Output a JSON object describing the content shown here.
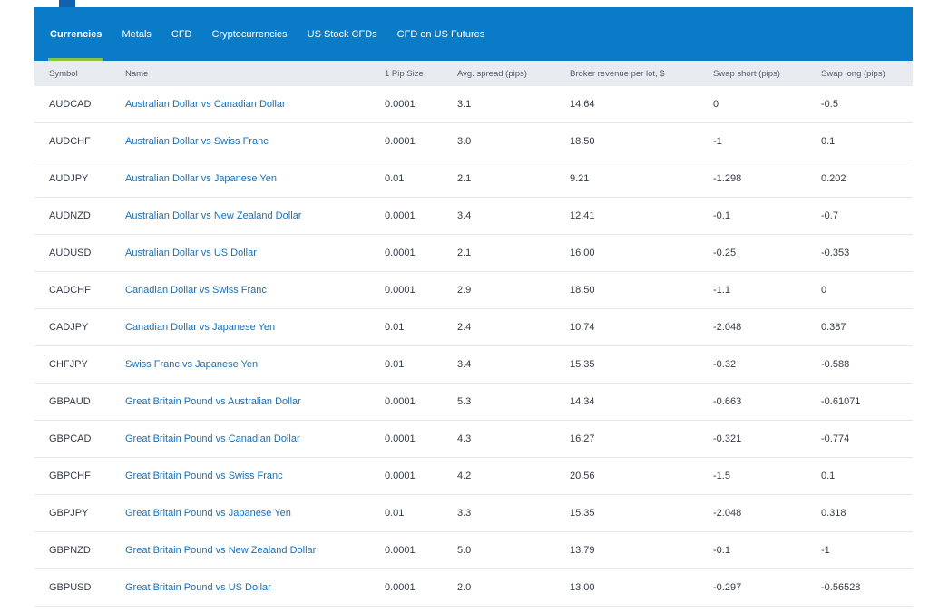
{
  "tabs": [
    {
      "label": "Currencies",
      "active": true
    },
    {
      "label": "Metals"
    },
    {
      "label": "CFD"
    },
    {
      "label": "Cryptocurrencies"
    },
    {
      "label": "US Stock CFDs"
    },
    {
      "label": "CFD on US Futures"
    }
  ],
  "table": {
    "headers": [
      "Symbol",
      "Name",
      "1 Pip Size",
      "Avg. spread (pips)",
      "Broker revenue per lot, $",
      "Swap short (pips)",
      "Swap long (pips)"
    ],
    "rows": [
      [
        "AUDCAD",
        "Australian Dollar vs Canadian Dollar",
        "0.0001",
        "3.1",
        "14.64",
        "0",
        "-0.5"
      ],
      [
        "AUDCHF",
        "Australian Dollar vs Swiss Franc",
        "0.0001",
        "3.0",
        "18.50",
        "-1",
        "0.1"
      ],
      [
        "AUDJPY",
        "Australian Dollar vs Japanese Yen",
        "0.01",
        "2.1",
        "9.21",
        "-1.298",
        "0.202"
      ],
      [
        "AUDNZD",
        "Australian Dollar vs New Zealand Dollar",
        "0.0001",
        "3.4",
        "12.41",
        "-0.1",
        "-0.7"
      ],
      [
        "AUDUSD",
        "Australian Dollar vs US Dollar",
        "0.0001",
        "2.1",
        "16.00",
        "-0.25",
        "-0.353"
      ],
      [
        "CADCHF",
        "Canadian Dollar vs Swiss Franc",
        "0.0001",
        "2.9",
        "18.50",
        "-1.1",
        "0"
      ],
      [
        "CADJPY",
        "Canadian Dollar vs Japanese Yen",
        "0.01",
        "2.4",
        "10.74",
        "-2.048",
        "0.387"
      ],
      [
        "CHFJPY",
        "Swiss Franc vs Japanese Yen",
        "0.01",
        "3.4",
        "15.35",
        "-0.32",
        "-0.588"
      ],
      [
        "GBPAUD",
        "Great Britain Pound vs Australian Dollar",
        "0.0001",
        "5.3",
        "14.34",
        "-0.663",
        "-0.61071"
      ],
      [
        "GBPCAD",
        "Great Britain Pound vs Canadian Dollar",
        "0.0001",
        "4.3",
        "16.27",
        "-0.321",
        "-0.774"
      ],
      [
        "GBPCHF",
        "Great Britain Pound vs Swiss Franc",
        "0.0001",
        "4.2",
        "20.56",
        "-1.5",
        "0.1"
      ],
      [
        "GBPJPY",
        "Great Britain Pound vs Japanese Yen",
        "0.01",
        "3.3",
        "15.35",
        "-2.048",
        "0.318"
      ],
      [
        "GBPNZD",
        "Great Britain Pound vs New Zealand Dollar",
        "0.0001",
        "5.0",
        "13.79",
        "-0.1",
        "-1"
      ],
      [
        "GBPUSD",
        "Great Britain Pound vs US Dollar",
        "0.0001",
        "2.0",
        "13.00",
        "-0.297",
        "-0.56528"
      ]
    ]
  },
  "colors": {
    "tabbar_bg": "#0a7cc7",
    "active_tab_underline": "#8cc63f",
    "header_bg": "#e8ecf1",
    "link": "#1a6fb5"
  }
}
